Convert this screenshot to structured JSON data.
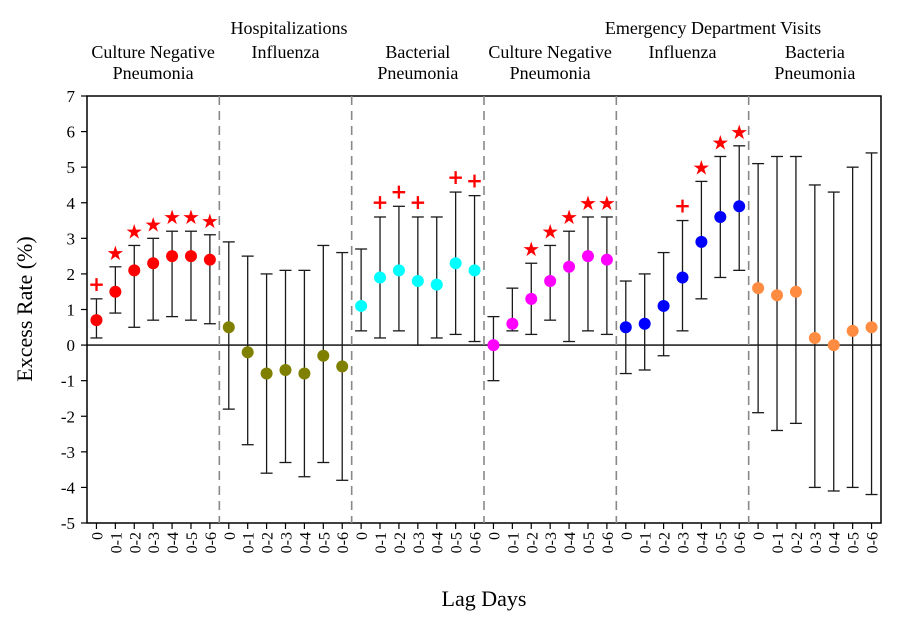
{
  "chart_data": {
    "type": "scatter",
    "subtype": "point-estimate-with-error-bars",
    "xlabel": "Lag Days",
    "ylabel": "Excess Rate (%)",
    "ylim": [
      -5,
      7
    ],
    "yticks": [
      -5,
      -4,
      -3,
      -2,
      -1,
      0,
      1,
      2,
      3,
      4,
      5,
      6,
      7
    ],
    "lags": [
      "0",
      "0-1",
      "0-2",
      "0-3",
      "0-4",
      "0-5",
      "0-6"
    ],
    "group_titles": [
      "Hospitalizations",
      "Emergency Department Visits"
    ],
    "marker_legend": {
      "star": "★",
      "plus": "+"
    },
    "series": [
      {
        "name": "Culture Negative Pneumonia",
        "label_lines": [
          "Culture Negative",
          "Pneumonia"
        ],
        "group": "Hospitalizations",
        "color": "#ff0000",
        "values": [
          0.7,
          1.5,
          2.1,
          2.3,
          2.5,
          2.5,
          2.4
        ],
        "lower": [
          0.2,
          0.9,
          0.5,
          0.7,
          0.8,
          0.7,
          0.6
        ],
        "upper": [
          1.3,
          2.2,
          2.8,
          3.0,
          3.2,
          3.2,
          3.1
        ],
        "markers": [
          "plus",
          "star",
          "star",
          "star",
          "star",
          "star",
          "star"
        ]
      },
      {
        "name": "Influenza",
        "label_lines": [
          "Influenza"
        ],
        "group": "Hospitalizations",
        "color": "#808000",
        "values": [
          0.5,
          -0.2,
          -0.8,
          -0.7,
          -0.8,
          -0.3,
          -0.6
        ],
        "lower": [
          -1.8,
          -2.8,
          -3.6,
          -3.3,
          -3.7,
          -3.3,
          -3.8
        ],
        "upper": [
          2.9,
          2.5,
          2.0,
          2.1,
          2.1,
          2.8,
          2.6
        ],
        "markers": [
          "",
          "",
          "",
          "",
          "",
          "",
          ""
        ]
      },
      {
        "name": "Bacterial Pneumonia",
        "label_lines": [
          "Bacterial",
          "Pneumonia"
        ],
        "group": "Hospitalizations",
        "color": "#00ffff",
        "values": [
          1.1,
          1.9,
          2.1,
          1.8,
          1.7,
          2.3,
          2.1
        ],
        "lower": [
          0.4,
          0.2,
          0.4,
          0.0,
          0.2,
          0.3,
          0.1
        ],
        "upper": [
          2.7,
          3.6,
          3.9,
          3.6,
          3.6,
          4.3,
          4.2
        ],
        "markers": [
          "",
          "plus",
          "plus",
          "plus",
          "",
          "plus",
          "plus"
        ]
      },
      {
        "name": "Culture Negative Pneumonia",
        "label_lines": [
          "Culture Negative",
          "Pneumonia"
        ],
        "group": "Emergency Department Visits",
        "color": "#ff00ff",
        "values": [
          0.0,
          0.6,
          1.3,
          1.8,
          2.2,
          2.5,
          2.4
        ],
        "lower": [
          -1.0,
          0.4,
          0.3,
          0.7,
          0.1,
          0.4,
          0.3
        ],
        "upper": [
          0.8,
          1.6,
          2.3,
          2.8,
          3.2,
          3.6,
          3.6
        ],
        "markers": [
          "",
          "",
          "star",
          "star",
          "star",
          "star",
          "star"
        ]
      },
      {
        "name": "Influenza",
        "label_lines": [
          "Influenza"
        ],
        "group": "Emergency Department Visits",
        "color": "#0000ff",
        "values": [
          0.5,
          0.6,
          1.1,
          1.9,
          2.9,
          3.6,
          3.9
        ],
        "lower": [
          -0.8,
          -0.7,
          -0.3,
          0.4,
          1.3,
          1.9,
          2.1
        ],
        "upper": [
          1.8,
          2.0,
          2.6,
          3.5,
          4.6,
          5.3,
          5.6
        ],
        "markers": [
          "",
          "",
          "",
          "plus",
          "star",
          "star",
          "star"
        ]
      },
      {
        "name": "Bacteria Pneumonia",
        "label_lines": [
          "Bacteria",
          "Pneumonia"
        ],
        "group": "Emergency Department Visits",
        "color": "#ff8c40",
        "values": [
          1.6,
          1.4,
          1.5,
          0.2,
          0.0,
          0.4,
          0.5
        ],
        "lower": [
          -1.9,
          -2.4,
          -2.2,
          -4.0,
          -4.1,
          -4.0,
          -4.2
        ],
        "upper": [
          5.1,
          5.3,
          5.3,
          4.5,
          4.3,
          5.0,
          5.4
        ],
        "markers": [
          "",
          "",
          "",
          "",
          "",
          "",
          ""
        ]
      }
    ]
  }
}
